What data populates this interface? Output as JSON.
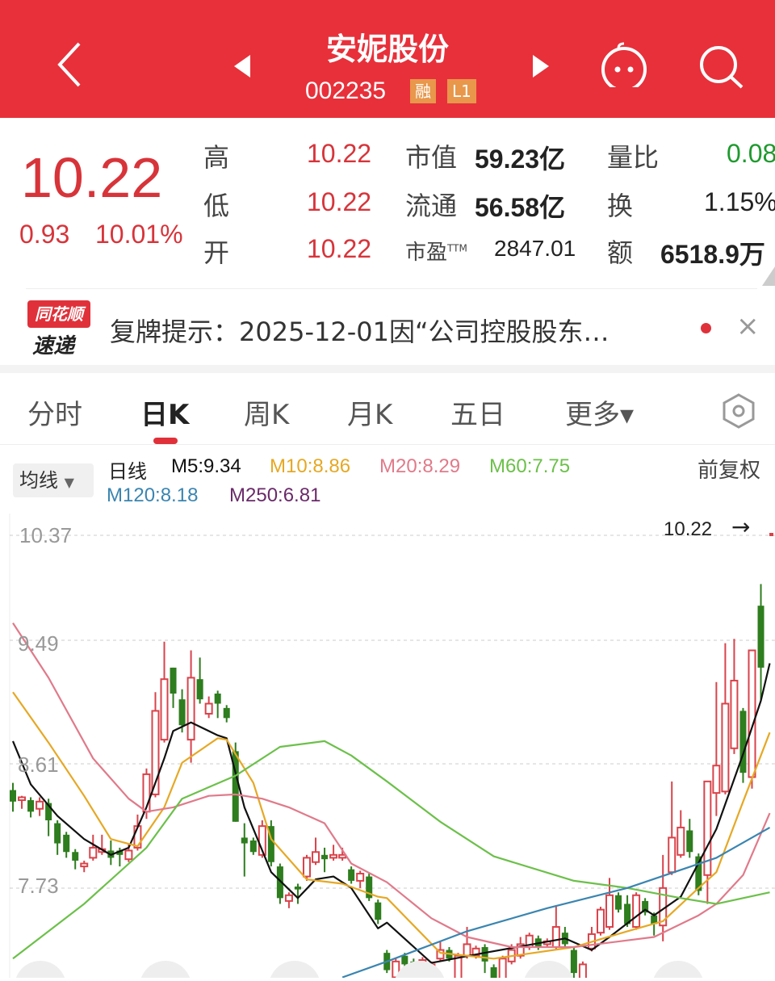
{
  "header": {
    "title": "安妮股份",
    "code": "002235",
    "badges": [
      "融",
      "L1"
    ],
    "icons": [
      "back-chevron",
      "prev-triangle",
      "next-triangle",
      "robot-assistant",
      "search"
    ]
  },
  "quote": {
    "price": "10.22",
    "change": "0.93",
    "change_pct": "10.01%",
    "rows": [
      {
        "label": "高",
        "value": "10.22",
        "label2": "市值",
        "value2": "59.23亿",
        "label3": "量比",
        "value3": "0.08"
      },
      {
        "label": "低",
        "value": "10.22",
        "label2": "流通",
        "value2": "56.58亿",
        "label3": "换",
        "value3": "1.15%"
      },
      {
        "label": "开",
        "value": "10.22",
        "label2": "市盈",
        "label2_sup": "TTM",
        "value2": "2847.01",
        "label3": "额",
        "value3": "6518.9万"
      }
    ]
  },
  "news": {
    "logo_top": "同花顺",
    "logo_bottom": "速递",
    "text": "复牌提示：2025-12-01因“公司控股股东…",
    "close": "×"
  },
  "tabs": [
    {
      "label": "分时"
    },
    {
      "label": "日K",
      "active": true
    },
    {
      "label": "周K"
    },
    {
      "label": "月K"
    },
    {
      "label": "五日"
    },
    {
      "label": "更多▾"
    }
  ],
  "legend": {
    "ma_button": "均线",
    "period": "日线",
    "adjust": "前复权",
    "items": [
      {
        "label": "M5:9.34",
        "color": "#111111"
      },
      {
        "label": "M10:8.86",
        "color": "#E6A824"
      },
      {
        "label": "M20:8.29",
        "color": "#E07A8A"
      },
      {
        "label": "M60:7.75",
        "color": "#6CC04A"
      },
      {
        "label": "M120:8.18",
        "color": "#3A85B0"
      },
      {
        "label": "M250:6.81",
        "color": "#6A2A6A"
      }
    ]
  },
  "colors": {
    "up": "#D9434B",
    "down": "#2E7D1E",
    "brand": "#E8303A"
  },
  "chart_data": {
    "type": "candlestick",
    "y_ticks": [
      "10.37",
      "9.49",
      "8.61",
      "7.73"
    ],
    "last_price_label": "10.22",
    "candles_ohlc": [
      [
        8.45,
        8.5,
        8.3,
        8.37
      ],
      [
        8.38,
        8.41,
        8.32,
        8.4
      ],
      [
        8.38,
        8.4,
        8.26,
        8.3
      ],
      [
        8.32,
        8.4,
        8.27,
        8.37
      ],
      [
        8.36,
        8.39,
        8.13,
        8.24
      ],
      [
        8.22,
        8.24,
        8.0,
        8.08
      ],
      [
        8.14,
        8.16,
        7.98,
        8.02
      ],
      [
        8.02,
        8.04,
        7.9,
        7.96
      ],
      [
        7.92,
        7.96,
        7.88,
        7.94
      ],
      [
        7.98,
        8.14,
        7.96,
        8.05
      ],
      [
        8.02,
        8.14,
        8.0,
        8.04
      ],
      [
        8.03,
        8.1,
        7.93,
        7.98
      ],
      [
        8.03,
        8.05,
        7.92,
        8.0
      ],
      [
        7.97,
        8.08,
        7.95,
        8.03
      ],
      [
        8.05,
        8.28,
        8.03,
        8.2
      ],
      [
        8.3,
        8.6,
        8.25,
        8.56
      ],
      [
        8.42,
        9.13,
        8.4,
        9.0
      ],
      [
        8.8,
        9.48,
        8.78,
        9.22
      ],
      [
        9.3,
        9.3,
        9.02,
        9.12
      ],
      [
        9.08,
        9.15,
        8.85,
        8.9
      ],
      [
        8.8,
        9.42,
        8.64,
        9.23
      ],
      [
        9.22,
        9.37,
        9.05,
        9.08
      ],
      [
        8.98,
        9.1,
        8.95,
        9.05
      ],
      [
        9.12,
        9.14,
        8.95,
        9.05
      ],
      [
        9.02,
        9.04,
        8.92,
        8.95
      ],
      [
        8.72,
        8.78,
        8.23,
        8.23
      ],
      [
        8.12,
        8.22,
        7.85,
        8.08
      ],
      [
        8.1,
        8.12,
        8.0,
        8.02
      ],
      [
        8.0,
        8.24,
        7.98,
        8.2
      ],
      [
        8.2,
        8.24,
        7.92,
        7.95
      ],
      [
        7.92,
        7.94,
        7.66,
        7.7
      ],
      [
        7.68,
        7.74,
        7.63,
        7.72
      ],
      [
        7.78,
        7.8,
        7.66,
        7.76
      ],
      [
        7.85,
        8.0,
        7.82,
        7.98
      ],
      [
        7.95,
        8.12,
        7.93,
        8.02
      ],
      [
        8.0,
        8.05,
        7.88,
        7.97
      ],
      [
        7.98,
        8.07,
        7.96,
        8.0
      ],
      [
        7.98,
        8.05,
        7.96,
        8.0
      ],
      [
        7.9,
        7.92,
        7.8,
        7.82
      ],
      [
        7.82,
        7.89,
        7.77,
        7.87
      ],
      [
        7.85,
        7.87,
        7.68,
        7.7
      ],
      [
        7.67,
        7.69,
        7.52,
        7.55
      ],
      [
        7.32,
        7.34,
        7.18,
        7.2
      ],
      [
        7.15,
        7.28,
        7.13,
        7.26
      ],
      [
        7.3,
        7.32,
        7.22,
        7.24
      ],
      [
        7.26,
        7.28,
        7.12,
        7.2
      ],
      [
        7.22,
        7.29,
        7.2,
        7.27
      ],
      [
        7.18,
        7.26,
        7.16,
        7.24
      ],
      [
        7.28,
        7.4,
        7.26,
        7.34
      ],
      [
        7.34,
        7.36,
        7.26,
        7.28
      ],
      [
        7.1,
        7.32,
        7.08,
        7.3
      ],
      [
        7.3,
        7.5,
        7.28,
        7.38
      ],
      [
        7.3,
        7.37,
        7.28,
        7.35
      ],
      [
        7.36,
        7.38,
        7.18,
        7.26
      ],
      [
        7.22,
        7.24,
        7.1,
        7.12
      ],
      [
        7.14,
        7.3,
        7.12,
        7.28
      ],
      [
        7.26,
        7.38,
        7.24,
        7.34
      ],
      [
        7.3,
        7.43,
        7.28,
        7.38
      ],
      [
        7.36,
        7.46,
        7.34,
        7.44
      ],
      [
        7.42,
        7.44,
        7.34,
        7.36
      ],
      [
        7.38,
        7.42,
        7.36,
        7.4
      ],
      [
        7.36,
        7.65,
        7.34,
        7.5
      ],
      [
        7.46,
        7.5,
        7.36,
        7.38
      ],
      [
        7.34,
        7.36,
        7.1,
        7.18
      ],
      [
        7.1,
        7.26,
        7.08,
        7.24
      ],
      [
        7.35,
        7.5,
        7.33,
        7.45
      ],
      [
        7.46,
        7.64,
        7.44,
        7.62
      ],
      [
        7.5,
        7.84,
        7.48,
        7.72
      ],
      [
        7.72,
        7.74,
        7.6,
        7.62
      ],
      [
        7.66,
        7.72,
        7.5,
        7.52
      ],
      [
        7.5,
        7.74,
        7.48,
        7.72
      ],
      [
        7.68,
        7.7,
        7.58,
        7.6
      ],
      [
        7.58,
        7.6,
        7.44,
        7.52
      ],
      [
        7.51,
        8.0,
        7.4,
        7.77
      ],
      [
        7.88,
        8.51,
        7.86,
        8.12
      ],
      [
        8.0,
        8.31,
        7.98,
        8.19
      ],
      [
        8.17,
        8.25,
        7.98,
        8.02
      ],
      [
        7.99,
        8.01,
        7.72,
        7.75
      ],
      [
        7.86,
        8.51,
        7.66,
        8.51
      ],
      [
        8.43,
        9.2,
        8.27,
        8.62
      ],
      [
        8.44,
        9.47,
        8.42,
        9.05
      ],
      [
        8.74,
        9.5,
        8.7,
        9.21
      ],
      [
        9.0,
        9.02,
        8.5,
        8.57
      ],
      [
        8.54,
        9.42,
        8.46,
        9.42
      ],
      [
        9.73,
        9.88,
        9.07,
        9.3
      ]
    ],
    "moving_averages": [
      {
        "name": "M5",
        "color": "#111111",
        "points": [
          [
            0,
            8.79
          ],
          [
            2,
            8.49
          ],
          [
            5,
            8.27
          ],
          [
            8,
            8.11
          ],
          [
            11,
            8.0
          ],
          [
            13,
            8.05
          ],
          [
            15,
            8.33
          ],
          [
            17,
            8.67
          ],
          [
            18,
            8.86
          ],
          [
            20,
            8.92
          ],
          [
            23,
            8.83
          ],
          [
            24,
            8.81
          ],
          [
            26,
            8.33
          ],
          [
            29,
            7.88
          ],
          [
            32,
            7.7
          ],
          [
            34,
            7.83
          ],
          [
            36,
            7.85
          ],
          [
            38,
            7.77
          ],
          [
            41,
            7.49
          ],
          [
            42,
            7.53
          ],
          [
            47,
            7.25
          ],
          [
            53,
            7.32
          ],
          [
            62,
            7.42
          ],
          [
            65,
            7.34
          ],
          [
            67,
            7.43
          ],
          [
            71,
            7.62
          ],
          [
            72,
            7.58
          ],
          [
            75,
            7.71
          ],
          [
            79,
            8.18
          ],
          [
            82,
            8.7
          ],
          [
            84,
            9.07
          ],
          [
            85,
            9.33
          ]
        ]
      },
      {
        "name": "M10",
        "color": "#E6A824",
        "points": [
          [
            0,
            9.13
          ],
          [
            4,
            8.78
          ],
          [
            8,
            8.41
          ],
          [
            11,
            8.11
          ],
          [
            14,
            8.06
          ],
          [
            17,
            8.33
          ],
          [
            19,
            8.64
          ],
          [
            23,
            8.81
          ],
          [
            24,
            8.8
          ],
          [
            27,
            8.5
          ],
          [
            29,
            8.11
          ],
          [
            33,
            7.83
          ],
          [
            37,
            7.8
          ],
          [
            41,
            7.71
          ],
          [
            42,
            7.7
          ],
          [
            48,
            7.32
          ],
          [
            54,
            7.28
          ],
          [
            63,
            7.36
          ],
          [
            69,
            7.47
          ],
          [
            73,
            7.54
          ],
          [
            77,
            7.77
          ],
          [
            79,
            7.88
          ],
          [
            82,
            8.37
          ],
          [
            85,
            8.85
          ]
        ]
      },
      {
        "name": "M20",
        "color": "#E07A8A",
        "points": [
          [
            0,
            9.61
          ],
          [
            4,
            9.23
          ],
          [
            9,
            8.67
          ],
          [
            13,
            8.39
          ],
          [
            15,
            8.3
          ],
          [
            18,
            8.33
          ],
          [
            22,
            8.41
          ],
          [
            25,
            8.42
          ],
          [
            28,
            8.39
          ],
          [
            31,
            8.33
          ],
          [
            35,
            8.22
          ],
          [
            38,
            7.94
          ],
          [
            42,
            7.81
          ],
          [
            47,
            7.56
          ],
          [
            51,
            7.43
          ],
          [
            56,
            7.36
          ],
          [
            63,
            7.36
          ],
          [
            72,
            7.43
          ],
          [
            77,
            7.58
          ],
          [
            79,
            7.66
          ],
          [
            82,
            7.86
          ],
          [
            85,
            8.29
          ]
        ]
      },
      {
        "name": "M60",
        "color": "#6CC04A",
        "points": [
          [
            0,
            7.28
          ],
          [
            8,
            7.66
          ],
          [
            15,
            8.05
          ],
          [
            19,
            8.39
          ],
          [
            25,
            8.55
          ],
          [
            30,
            8.75
          ],
          [
            35,
            8.79
          ],
          [
            38,
            8.69
          ],
          [
            42,
            8.51
          ],
          [
            48,
            8.23
          ],
          [
            54,
            7.99
          ],
          [
            63,
            7.82
          ],
          [
            69,
            7.77
          ],
          [
            75,
            7.7
          ],
          [
            79,
            7.66
          ],
          [
            85,
            7.74
          ]
        ]
      },
      {
        "name": "M120",
        "color": "#3A85B0",
        "points": [
          [
            37,
            7.15
          ],
          [
            42,
            7.26
          ],
          [
            51,
            7.47
          ],
          [
            60,
            7.63
          ],
          [
            69,
            7.77
          ],
          [
            79,
            7.98
          ],
          [
            85,
            8.19
          ]
        ]
      }
    ]
  }
}
